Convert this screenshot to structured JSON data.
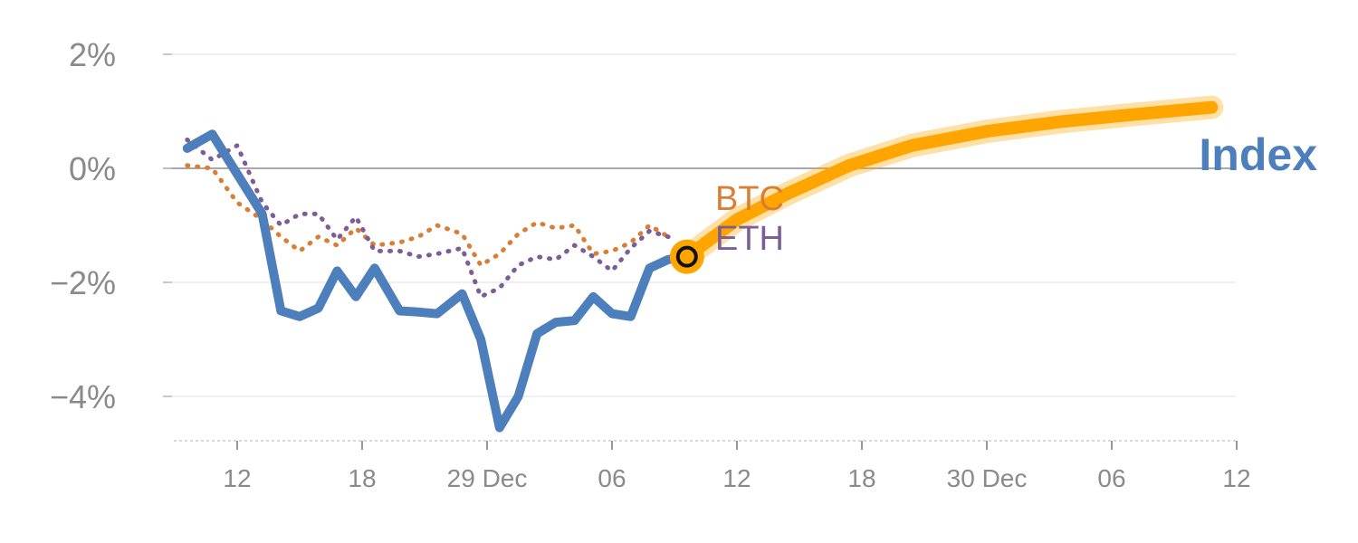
{
  "chart_data": {
    "type": "line",
    "title": "",
    "xlabel": "",
    "ylabel": "",
    "ylim": [
      -4.8,
      2.2
    ],
    "y_ticks": [
      {
        "value": 2,
        "label": "2%"
      },
      {
        "value": 0,
        "label": "0%"
      },
      {
        "value": -2,
        "label": "−2%"
      },
      {
        "value": -4,
        "label": "−4%"
      }
    ],
    "x_range": [
      0,
      86
    ],
    "x_ticks": [
      {
        "x": 6,
        "label": "12"
      },
      {
        "x": 16,
        "label": "18"
      },
      {
        "x": 26,
        "label": "29 Dec"
      },
      {
        "x": 36,
        "label": "06"
      },
      {
        "x": 46,
        "label": "12"
      },
      {
        "x": 56,
        "label": "18"
      },
      {
        "x": 66,
        "label": "30 Dec"
      },
      {
        "x": 76,
        "label": "06"
      },
      {
        "x": 86,
        "label": "12"
      }
    ],
    "series": [
      {
        "name": "Index",
        "label": "Index",
        "color": "#4e7fbd",
        "style": "solid",
        "x": [
          2,
          4,
          6,
          8,
          9.5,
          11,
          12.5,
          14,
          15.5,
          17,
          19,
          20.5,
          22,
          24,
          25.5,
          27,
          28.5,
          30,
          31.5,
          33,
          34.5,
          36,
          37.5,
          39,
          40.5,
          42
        ],
        "y": [
          0.35,
          0.6,
          -0.1,
          -0.8,
          -2.5,
          -2.6,
          -2.45,
          -1.8,
          -2.25,
          -1.75,
          -2.5,
          -2.52,
          -2.55,
          -2.2,
          -3.0,
          -4.55,
          -4.0,
          -2.9,
          -2.7,
          -2.67,
          -2.25,
          -2.55,
          -2.6,
          -1.75,
          -1.6,
          -1.55
        ]
      },
      {
        "name": "BTC",
        "label": "BTC",
        "color": "#d97f35",
        "style": "dotted",
        "x": [
          2,
          4,
          6,
          8,
          9.5,
          11,
          12.5,
          14,
          15.5,
          17,
          19,
          20.5,
          22,
          24,
          25.5,
          27,
          28.5,
          30,
          31.5,
          33,
          34.5,
          36,
          37.5,
          39,
          40.5
        ],
        "y": [
          0.05,
          0.0,
          -0.6,
          -0.9,
          -1.2,
          -1.45,
          -1.2,
          -1.35,
          -1.05,
          -1.35,
          -1.3,
          -1.2,
          -1.0,
          -1.15,
          -1.7,
          -1.5,
          -1.15,
          -0.95,
          -1.05,
          -1.0,
          -1.5,
          -1.45,
          -1.3,
          -1.0,
          -1.2
        ]
      },
      {
        "name": "ETH",
        "label": "ETH",
        "color": "#7c5d96",
        "style": "dotted",
        "x": [
          2,
          4,
          6,
          8,
          9.5,
          11,
          12.5,
          14,
          15.5,
          17,
          19,
          20.5,
          22,
          24,
          25.5,
          27,
          28.5,
          30,
          31.5,
          33,
          34.5,
          36,
          37.5,
          39,
          40.5
        ],
        "y": [
          0.5,
          0.15,
          0.4,
          -0.6,
          -1.0,
          -0.8,
          -0.8,
          -1.25,
          -0.85,
          -1.45,
          -1.45,
          -1.55,
          -1.5,
          -1.4,
          -2.25,
          -2.1,
          -1.7,
          -1.55,
          -1.6,
          -1.35,
          -1.55,
          -1.8,
          -1.4,
          -1.1,
          -1.2
        ]
      },
      {
        "name": "Forecast",
        "label": "",
        "color": "#ffa500",
        "style": "band",
        "x": [
          42,
          46,
          50,
          55,
          60,
          66,
          72,
          78,
          84
        ],
        "y": [
          -1.55,
          -0.9,
          -0.45,
          0.05,
          0.4,
          0.65,
          0.82,
          0.95,
          1.07
        ]
      }
    ],
    "marker": {
      "x": 42,
      "y": -1.55,
      "color": "#ffa500"
    }
  }
}
